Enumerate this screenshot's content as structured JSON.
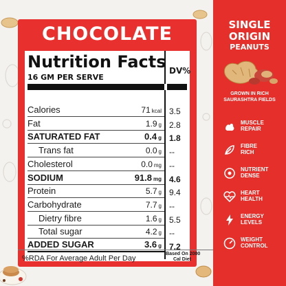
{
  "card": {
    "title": "CHOCOLATE",
    "heading": "Nutrition Facts",
    "serving": "16 GM PER SERVE",
    "dv_heading": "DV%"
  },
  "rows": [
    {
      "label": "Calories",
      "value": "71",
      "unit": "kcal",
      "dv": "3.5",
      "bold": false,
      "indent": false
    },
    {
      "label": "Fat",
      "value": "1.9",
      "unit": "g",
      "dv": "2.8",
      "bold": false,
      "indent": false
    },
    {
      "label": "SATURATED FAT",
      "value": "0.4",
      "unit": "g",
      "dv": "1.8",
      "bold": true,
      "indent": false
    },
    {
      "label": "Trans fat",
      "value": "0.0",
      "unit": "g",
      "dv": "--",
      "bold": false,
      "indent": true
    },
    {
      "label": "Cholesterol",
      "value": "0.0",
      "unit": "mg",
      "dv": "--",
      "bold": false,
      "indent": false
    },
    {
      "label": "SODIUM",
      "value": "91.8",
      "unit": "mg",
      "dv": "4.6",
      "bold": true,
      "indent": false
    },
    {
      "label": "Protein",
      "value": "5.7",
      "unit": "g",
      "dv": "9.4",
      "bold": false,
      "indent": false
    },
    {
      "label": "Carbohydrate",
      "value": "7.7",
      "unit": "g",
      "dv": "--",
      "bold": false,
      "indent": false
    },
    {
      "label": "Dietry fibre",
      "value": "1.6",
      "unit": "g",
      "dv": "5.5",
      "bold": false,
      "indent": true
    },
    {
      "label": "Total sugar",
      "value": "4.2",
      "unit": "g",
      "dv": "--",
      "bold": false,
      "indent": true
    },
    {
      "label": "ADDED SUGAR",
      "value": "3.6",
      "unit": "g",
      "dv": "7.2",
      "bold": true,
      "indent": false
    }
  ],
  "footer": {
    "rda": "%RDA For Average Adult Per Day",
    "note_line1": "(Based On 2000",
    "note_line2": "Cal Diet"
  },
  "side": {
    "title_line1": "SINGLE",
    "title_line2": "ORIGIN",
    "title_line3": "PEANUTS",
    "grown_line1": "GROWN IN RICH",
    "grown_line2": "SAURASHTRA FIELDS",
    "features": [
      {
        "line1": "MUSCLE",
        "line2": "REPAIR",
        "icon": "muscle-icon"
      },
      {
        "line1": "FIBRE",
        "line2": "RICH",
        "icon": "fibre-icon"
      },
      {
        "line1": "NUTRIENT",
        "line2": "DENSE",
        "icon": "nutrient-icon"
      },
      {
        "line1": "HEART",
        "line2": "HEALTH",
        "icon": "heart-icon"
      },
      {
        "line1": "ENERGY",
        "line2": "LEVELS",
        "icon": "energy-icon"
      },
      {
        "line1": "WEIGHT",
        "line2": "CONTROL",
        "icon": "weight-icon"
      }
    ]
  },
  "colors": {
    "brand_red": "#e8302e",
    "panel_white": "#ffffff",
    "text_dark": "#111111"
  }
}
